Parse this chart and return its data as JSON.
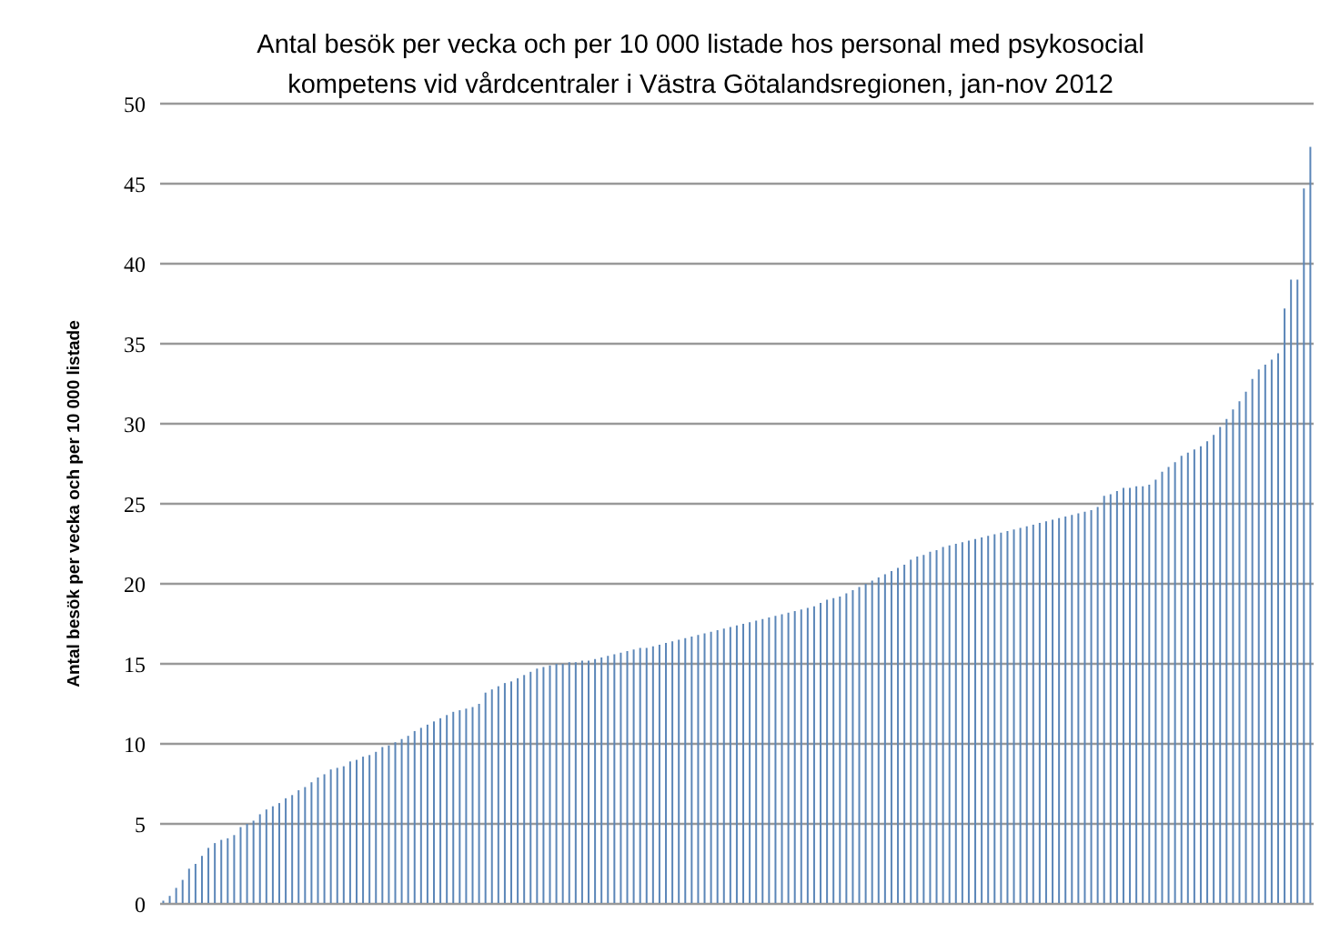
{
  "chart_data": {
    "type": "bar",
    "title": "Antal besök per vecka och per 10 000 listade hos personal med psykosocial kompetens vid vårdcentraler i Västra Götalandsregionen, jan-nov 2012",
    "ylabel": "Antal besök per vecka och per 10 000 listade",
    "categories": [
      null,
      null,
      null,
      null,
      null,
      null,
      null,
      null,
      null,
      null,
      null,
      null,
      null,
      null,
      null,
      null,
      null,
      null,
      null,
      null,
      null,
      null,
      null,
      null,
      null,
      null,
      null,
      null,
      null,
      null,
      null,
      null,
      null,
      null,
      null,
      null,
      null,
      null,
      null,
      null,
      null,
      null,
      null,
      null,
      null,
      null,
      null,
      null,
      null,
      null,
      null,
      null,
      null,
      null,
      null,
      null,
      null,
      null,
      null,
      null,
      null,
      null,
      null,
      null,
      null,
      null,
      null,
      null,
      null,
      null,
      null,
      null,
      null,
      null,
      null,
      null,
      null,
      null,
      null,
      null,
      null,
      null,
      null,
      null,
      null,
      null,
      null,
      null,
      null,
      null,
      null,
      null,
      null,
      null,
      null,
      null,
      null,
      null,
      null,
      null,
      null,
      null,
      null,
      null,
      null,
      null,
      null,
      null,
      null,
      null,
      null,
      null,
      null,
      null,
      null,
      null,
      null,
      null,
      null,
      null,
      null,
      null,
      null,
      null,
      null,
      null,
      null,
      null,
      null,
      null,
      null,
      null,
      null,
      null,
      null,
      null,
      null,
      null,
      null,
      null,
      null,
      null,
      null,
      null,
      null,
      null,
      null,
      null,
      null,
      null,
      null,
      null,
      null,
      null,
      null,
      null,
      null,
      null,
      null,
      null,
      null,
      null,
      null,
      null,
      null,
      null,
      null,
      null,
      null,
      null,
      null,
      null,
      null,
      null,
      null,
      null,
      null,
      null,
      null
    ],
    "values": [
      0.2,
      0.5,
      1,
      1.5,
      2.2,
      2.5,
      3,
      3.5,
      3.8,
      4,
      4.1,
      4.3,
      4.8,
      5,
      5.2,
      5.6,
      5.9,
      6.1,
      6.3,
      6.6,
      6.8,
      7.1,
      7.3,
      7.6,
      7.9,
      8.1,
      8.4,
      8.5,
      8.6,
      8.9,
      9,
      9.2,
      9.3,
      9.5,
      9.8,
      9.9,
      10.1,
      10.3,
      10.5,
      10.8,
      11,
      11.2,
      11.4,
      11.6,
      11.8,
      12,
      12.1,
      12.2,
      12.3,
      12.5,
      13.2,
      13.4,
      13.6,
      13.8,
      13.9,
      14.1,
      14.3,
      14.5,
      14.7,
      14.8,
      14.9,
      15,
      15,
      15.1,
      15.1,
      15.2,
      15.2,
      15.3,
      15.4,
      15.5,
      15.6,
      15.7,
      15.8,
      15.9,
      16,
      16,
      16.1,
      16.2,
      16.3,
      16.4,
      16.5,
      16.6,
      16.7,
      16.8,
      16.9,
      17,
      17.1,
      17.2,
      17.3,
      17.4,
      17.5,
      17.6,
      17.7,
      17.8,
      17.9,
      18,
      18.1,
      18.2,
      18.3,
      18.4,
      18.5,
      18.6,
      18.8,
      19,
      19.1,
      19.2,
      19.4,
      19.6,
      19.8,
      20,
      20.2,
      20.4,
      20.6,
      20.8,
      21,
      21.2,
      21.5,
      21.7,
      21.8,
      22,
      22.1,
      22.3,
      22.4,
      22.5,
      22.6,
      22.7,
      22.8,
      22.9,
      23,
      23.1,
      23.2,
      23.3,
      23.4,
      23.5,
      23.6,
      23.7,
      23.8,
      23.9,
      24,
      24.1,
      24.2,
      24.3,
      24.4,
      24.5,
      24.6,
      24.8,
      25.5,
      25.6,
      25.8,
      26,
      26,
      26.1,
      26.1,
      26.2,
      26.5,
      27,
      27.3,
      27.6,
      28,
      28.2,
      28.4,
      28.6,
      28.9,
      29.3,
      29.8,
      30.3,
      30.9,
      31.4,
      32,
      32.8,
      33.4,
      33.7,
      34,
      34.4,
      37.2,
      39,
      39,
      44.7,
      47.3
    ],
    "color": "#5b86b8",
    "ylim": [
      0,
      50
    ],
    "yticks": [
      0,
      5,
      10,
      15,
      20,
      25,
      30,
      35,
      40,
      45,
      50
    ],
    "grid": "y",
    "tick_labels": "y"
  }
}
